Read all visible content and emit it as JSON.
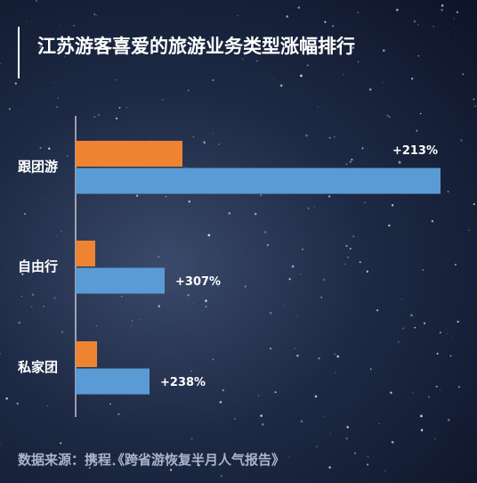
{
  "title": "江苏游客喜爱的旅游业务类型涨幅排行",
  "source": "数据来源：携程《跨省游恢复半月人气报告》",
  "colors": {
    "orange": "#ee8432",
    "blue": "#5b9bd5",
    "text": "#ffffff"
  },
  "chart_data": {
    "type": "bar",
    "orientation": "horizontal",
    "categories": [
      "跟团游",
      "自由行",
      "私家团"
    ],
    "series": [
      {
        "values": [
          120,
          22,
          24
        ]
      },
      {
        "values": [
          410,
          100,
          83
        ]
      }
    ],
    "labels": [
      "+213%",
      "+307%",
      "+238%"
    ],
    "xlim": [
      0,
      410
    ],
    "grid": false
  }
}
